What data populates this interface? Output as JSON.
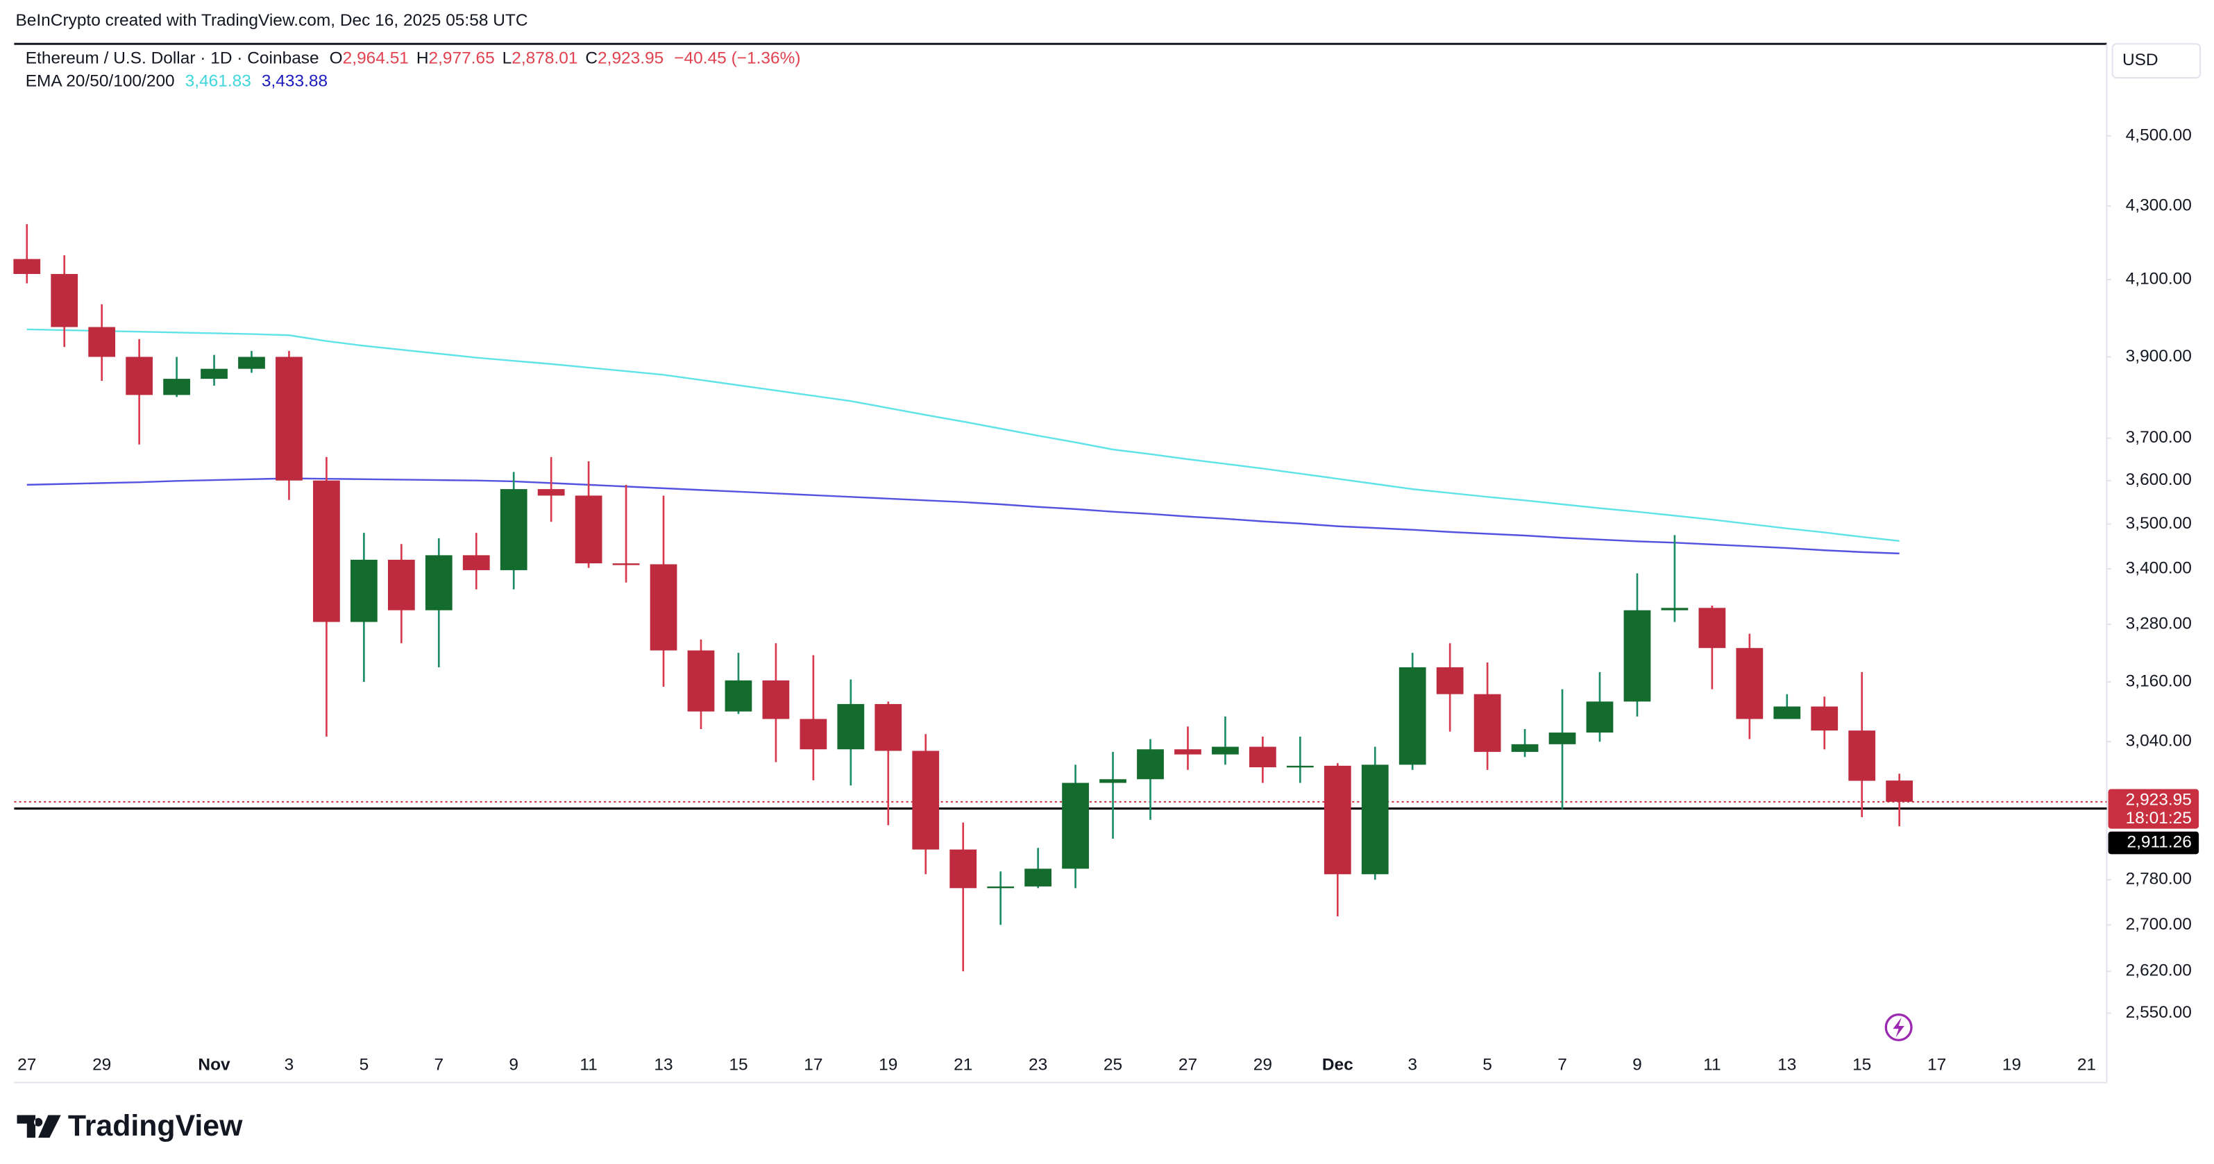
{
  "header": {
    "credit": "BeInCrypto created with TradingView.com, Dec 16, 2025 05:58 UTC"
  },
  "legend": {
    "symbol": "Ethereum / U.S. Dollar · 1D · Coinbase",
    "open_label": "O",
    "open": "2,964.51",
    "high_label": "H",
    "high": "2,977.65",
    "low_label": "L",
    "low": "2,878.01",
    "close_label": "C",
    "close": "2,923.95",
    "change": "−40.45 (−1.36%)",
    "ema_label": "EMA 20/50/100/200",
    "ema_values": [
      "3,461.83",
      "3,433.88"
    ]
  },
  "currency": "USD",
  "logo": "TradingView",
  "chart_data": {
    "type": "candlestick",
    "log_scale": true,
    "grid": false,
    "up_color": "#146b2e",
    "down_color": "#bf2b3e",
    "up_wick_color": "#1c8c68",
    "down_wick_color": "#d8394c",
    "categories": [
      "27",
      null,
      "29",
      null,
      null,
      "Nov",
      null,
      "3",
      null,
      "5",
      null,
      "7",
      null,
      "9",
      null,
      "11",
      null,
      "13",
      null,
      "15",
      null,
      "17",
      null,
      "19",
      null,
      "21",
      null,
      "23",
      null,
      "25",
      null,
      "27",
      null,
      "29",
      null,
      "Dec",
      null,
      "3",
      null,
      "5",
      null,
      "7",
      null,
      "9",
      null,
      "11",
      null,
      "13",
      null,
      "15",
      null,
      "17",
      null,
      "19",
      null,
      "21"
    ],
    "open": [
      4155,
      4115,
      3976,
      3900,
      3805,
      3845,
      3870,
      3900,
      3600,
      3285,
      3420,
      3310,
      3430,
      3397,
      3580,
      3565,
      3412,
      3410,
      3225,
      3100,
      3163,
      3085,
      3025,
      3115,
      3022,
      2835,
      2765,
      2768,
      2800,
      2960,
      2967,
      3025,
      3015,
      3030,
      2990,
      2993,
      2790,
      2995,
      3190,
      3135,
      3020,
      3035,
      3058,
      3120,
      3310,
      3315,
      3230,
      3085,
      3110,
      3062,
      2964.51,
      null,
      null,
      null,
      null,
      null
    ],
    "high": [
      4250,
      4165,
      4035,
      3945,
      3900,
      3905,
      3915,
      3915,
      3655,
      3480,
      3455,
      3468,
      3480,
      3620,
      3655,
      3645,
      3590,
      3565,
      3248,
      3220,
      3240,
      3215,
      3165,
      3120,
      3055,
      2885,
      2795,
      2838,
      2995,
      3020,
      3045,
      3070,
      3090,
      3050,
      3050,
      2998,
      3030,
      3220,
      3240,
      3200,
      3065,
      3145,
      3180,
      3390,
      3475,
      3320,
      3260,
      3135,
      3130,
      3180,
      2977.65,
      null,
      null,
      null,
      null,
      null
    ],
    "low": [
      4090,
      3925,
      3840,
      3685,
      3800,
      3828,
      3860,
      3555,
      3050,
      3160,
      3240,
      3190,
      3355,
      3355,
      3505,
      3402,
      3370,
      3150,
      3065,
      3095,
      3000,
      2965,
      2955,
      2880,
      2790,
      2620,
      2700,
      2765,
      2765,
      2855,
      2890,
      2985,
      2995,
      2960,
      2960,
      2715,
      2780,
      2985,
      3060,
      2985,
      3010,
      2910,
      3040,
      3090,
      3285,
      3145,
      3045,
      3085,
      3025,
      2895,
      2878.01,
      null,
      null,
      null,
      null,
      null
    ],
    "close": [
      4115,
      3976,
      3900,
      3805,
      3845,
      3870,
      3900,
      3600,
      3285,
      3420,
      3310,
      3430,
      3397,
      3580,
      3565,
      3412,
      3410,
      3225,
      3100,
      3163,
      3085,
      3025,
      3115,
      3022,
      2835,
      2765,
      2768,
      2800,
      2960,
      2967,
      3025,
      3015,
      3030,
      2990,
      2993,
      2790,
      2995,
      3190,
      3135,
      3020,
      3035,
      3058,
      3120,
      3310,
      3315,
      3230,
      3085,
      3110,
      3062,
      2964,
      2923.95,
      null,
      null,
      null,
      null,
      null
    ],
    "overlays": [
      {
        "color": "#5fe3e8",
        "values": [
          3970,
          3968,
          3966,
          3964,
          3962,
          3960,
          3958,
          3955,
          3940,
          3928,
          3918,
          3908,
          3898,
          3890,
          3882,
          3873,
          3864,
          3855,
          3842,
          3829,
          3816,
          3803,
          3790,
          3773,
          3756,
          3740,
          3723,
          3706,
          3690,
          3673,
          3662,
          3650,
          3639,
          3628,
          3616,
          3604,
          3592,
          3580,
          3571,
          3562,
          3554,
          3545,
          3536,
          3528,
          3519,
          3510,
          3500,
          3490,
          3481,
          3471,
          3461.83,
          null,
          null,
          null,
          null,
          null
        ]
      },
      {
        "color": "#5552e0",
        "values": [
          3590,
          3592,
          3594,
          3596,
          3599,
          3601,
          3603,
          3605,
          3604,
          3603,
          3602,
          3601,
          3600,
          3598,
          3594,
          3590,
          3586,
          3582,
          3578,
          3574,
          3570,
          3566,
          3562,
          3558,
          3554,
          3550,
          3545,
          3539,
          3534,
          3528,
          3523,
          3517,
          3512,
          3506,
          3501,
          3495,
          3491,
          3487,
          3482,
          3478,
          3474,
          3469,
          3465,
          3461,
          3458,
          3454,
          3450,
          3446,
          3441,
          3437,
          3433.88,
          null,
          null,
          null,
          null,
          null
        ]
      }
    ],
    "price_lines": [
      {
        "value": 2923.95,
        "label": "2,923.95",
        "countdown": "18:01:25",
        "color": "#c8303f",
        "style": "dotted"
      },
      {
        "value": 2911.26,
        "label": "2,911.26",
        "color": "#000000",
        "style": "solid"
      }
    ],
    "ylim": [
      2438,
      4776
    ],
    "yticks": [
      {
        "value": 2550,
        "label": "2,550.00"
      },
      {
        "value": 2620,
        "label": "2,620.00"
      },
      {
        "value": 2700,
        "label": "2,700.00"
      },
      {
        "value": 2780,
        "label": "2,780.00"
      },
      {
        "value": 3040,
        "label": "3,040.00"
      },
      {
        "value": 3160,
        "label": "3,160.00"
      },
      {
        "value": 3280,
        "label": "3,280.00"
      },
      {
        "value": 3400,
        "label": "3,400.00"
      },
      {
        "value": 3500,
        "label": "3,500.00"
      },
      {
        "value": 3600,
        "label": "3,600.00"
      },
      {
        "value": 3700,
        "label": "3,700.00"
      },
      {
        "value": 3900,
        "label": "3,900.00"
      },
      {
        "value": 4100,
        "label": "4,100.00"
      },
      {
        "value": 4300,
        "label": "4,300.00"
      },
      {
        "value": 4500,
        "label": "4,500.00"
      }
    ]
  }
}
